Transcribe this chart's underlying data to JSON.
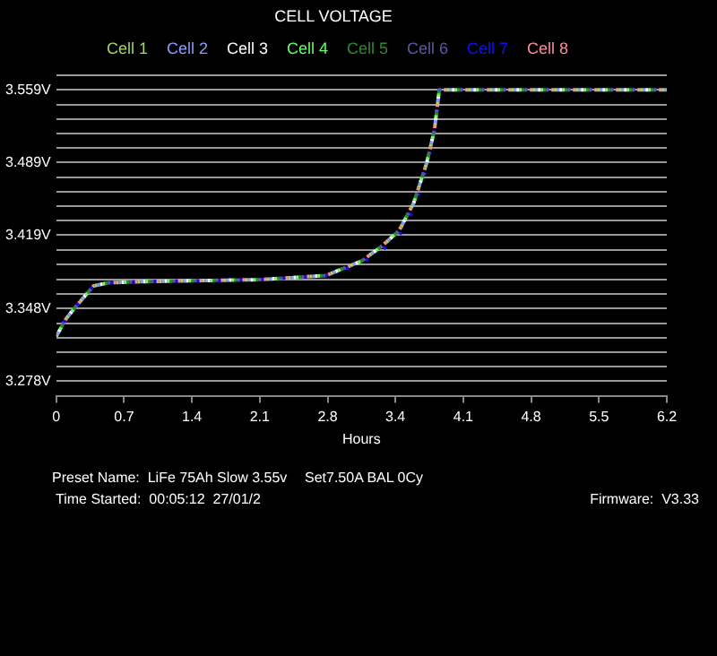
{
  "chart_data": {
    "type": "line",
    "title": "CELL VOLTAGE",
    "xlabel": "Hours",
    "x": [
      0,
      0.09,
      0.19,
      0.38,
      0.53,
      0.85,
      1.41,
      2.07,
      2.74,
      3.1,
      3.29,
      3.48,
      3.63,
      3.76,
      3.84,
      3.89,
      6.2
    ],
    "series": [
      {
        "name": "Cell 1",
        "color": "#a0d860",
        "values": [
          3.321,
          3.337,
          3.349,
          3.37,
          3.373,
          3.374,
          3.375,
          3.376,
          3.38,
          3.394,
          3.407,
          3.423,
          3.45,
          3.488,
          3.52,
          3.559,
          3.559
        ]
      },
      {
        "name": "Cell 2",
        "color": "#8c9cff",
        "values": [
          3.321,
          3.337,
          3.349,
          3.37,
          3.373,
          3.374,
          3.375,
          3.376,
          3.38,
          3.394,
          3.407,
          3.423,
          3.45,
          3.488,
          3.52,
          3.559,
          3.559
        ]
      },
      {
        "name": "Cell 3",
        "color": "#ffffff",
        "values": [
          3.321,
          3.337,
          3.349,
          3.37,
          3.373,
          3.374,
          3.375,
          3.376,
          3.38,
          3.394,
          3.407,
          3.423,
          3.45,
          3.488,
          3.52,
          3.559,
          3.559
        ]
      },
      {
        "name": "Cell 4",
        "color": "#66ff66",
        "values": [
          3.321,
          3.337,
          3.349,
          3.37,
          3.373,
          3.374,
          3.375,
          3.376,
          3.38,
          3.394,
          3.407,
          3.423,
          3.45,
          3.488,
          3.52,
          3.559,
          3.559
        ]
      },
      {
        "name": "Cell 5",
        "color": "#2e8b2e",
        "values": [
          3.321,
          3.337,
          3.349,
          3.37,
          3.373,
          3.374,
          3.375,
          3.376,
          3.38,
          3.394,
          3.407,
          3.423,
          3.45,
          3.488,
          3.52,
          3.559,
          3.559
        ]
      },
      {
        "name": "Cell 6",
        "color": "#5a5aa0",
        "values": [
          3.321,
          3.337,
          3.349,
          3.37,
          3.373,
          3.374,
          3.375,
          3.376,
          3.38,
          3.394,
          3.407,
          3.423,
          3.45,
          3.488,
          3.52,
          3.559,
          3.559
        ]
      },
      {
        "name": "Cell 7",
        "color": "#1010ff",
        "values": [
          3.321,
          3.337,
          3.349,
          3.37,
          3.373,
          3.374,
          3.375,
          3.376,
          3.38,
          3.392,
          3.403,
          3.418,
          3.444,
          3.484,
          3.52,
          3.559,
          3.559
        ]
      },
      {
        "name": "Cell 8",
        "color": "#ff8c9c",
        "values": [
          3.321,
          3.337,
          3.349,
          3.37,
          3.373,
          3.374,
          3.375,
          3.376,
          3.38,
          3.394,
          3.407,
          3.423,
          3.45,
          3.488,
          3.52,
          3.559,
          3.559
        ]
      }
    ],
    "xlim": [
      0,
      6.2
    ],
    "xticks": [
      0,
      {
        "value": 0.689,
        "label": "0.7"
      },
      {
        "value": 1.378,
        "label": "1.4"
      },
      {
        "value": 2.067,
        "label": "2.1"
      },
      {
        "value": 2.756,
        "label": "2.8"
      },
      {
        "value": 3.444,
        "label": "3.4"
      },
      {
        "value": 4.133,
        "label": "4.1"
      },
      {
        "value": 4.822,
        "label": "4.8"
      },
      {
        "value": 5.511,
        "label": "5.5"
      },
      6.2
    ],
    "ylim": [
      3.264,
      3.5735
    ],
    "yticks": [
      {
        "value": 3.278,
        "label": "3.278V"
      },
      {
        "value": 3.292,
        "label": null
      },
      {
        "value": 3.306,
        "label": null
      },
      {
        "value": 3.32,
        "label": null
      },
      {
        "value": 3.334,
        "label": null
      },
      {
        "value": 3.348,
        "label": "3.348V"
      },
      {
        "value": 3.362,
        "label": null
      },
      {
        "value": 3.376,
        "label": null
      },
      {
        "value": 3.391,
        "label": null
      },
      {
        "value": 3.405,
        "label": null
      },
      {
        "value": 3.419,
        "label": "3.419V"
      },
      {
        "value": 3.433,
        "label": null
      },
      {
        "value": 3.447,
        "label": null
      },
      {
        "value": 3.461,
        "label": null
      },
      {
        "value": 3.475,
        "label": null
      },
      {
        "value": 3.489,
        "label": "3.489V"
      },
      {
        "value": 3.503,
        "label": null
      },
      {
        "value": 3.517,
        "label": null
      },
      {
        "value": 3.531,
        "label": null
      },
      {
        "value": 3.545,
        "label": null
      },
      {
        "value": 3.559,
        "label": "3.559V"
      },
      {
        "value": 3.573,
        "label": null
      }
    ],
    "grid": "y",
    "legend": "top",
    "marker": "none",
    "line_style": "dashed",
    "annotations": [
      "Preset Name:  LiFe 75Ah Slow 3.55v",
      "Set7.50A BAL 0Cy",
      "Time Started:  00:05:12  27/01/2",
      "Firmware:  V3.33"
    ]
  }
}
